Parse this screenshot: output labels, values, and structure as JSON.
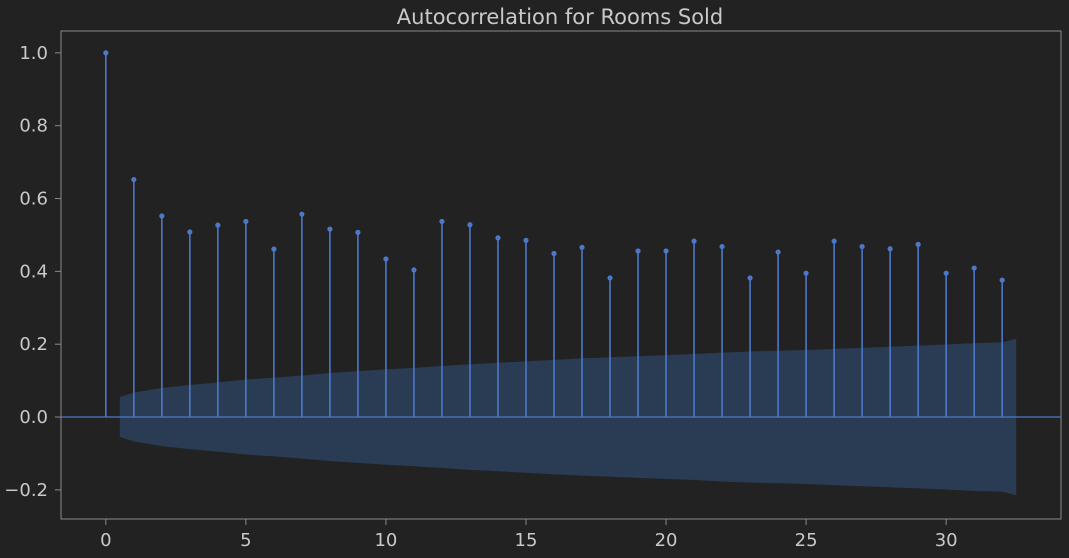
{
  "chart_data": {
    "type": "stem",
    "title": "Autocorrelation for Rooms Sold",
    "xlabel": "",
    "ylabel": "",
    "xlim": [
      -1.6,
      34.1
    ],
    "ylim": [
      -0.28,
      1.06
    ],
    "xticks": [
      0,
      5,
      10,
      15,
      20,
      25,
      30
    ],
    "xtick_labels": [
      "0",
      "5",
      "10",
      "15",
      "20",
      "25",
      "30"
    ],
    "yticks": [
      1.0,
      0.8,
      0.6,
      0.4,
      0.2,
      0.0,
      -0.2
    ],
    "ytick_labels": [
      "1.0",
      "0.8",
      "0.6",
      "0.4",
      "0.2",
      "0.0",
      "−0.2"
    ],
    "grid": false,
    "lags": [
      0,
      1,
      2,
      3,
      4,
      5,
      6,
      7,
      8,
      9,
      10,
      11,
      12,
      13,
      14,
      15,
      16,
      17,
      18,
      19,
      20,
      21,
      22,
      23,
      24,
      25,
      26,
      27,
      28,
      29,
      30,
      31,
      32
    ],
    "values": [
      1.0,
      0.652,
      0.552,
      0.508,
      0.527,
      0.537,
      0.461,
      0.557,
      0.516,
      0.507,
      0.434,
      0.404,
      0.537,
      0.528,
      0.492,
      0.485,
      0.449,
      0.466,
      0.382,
      0.456,
      0.456,
      0.483,
      0.468,
      0.382,
      0.453,
      0.395,
      0.483,
      0.468,
      0.462,
      0.474,
      0.395,
      0.409,
      0.376
    ],
    "confidence_band": {
      "x": [
        0.5,
        1,
        2,
        3,
        4,
        5,
        6,
        7,
        8,
        9,
        10,
        11,
        12,
        13,
        14,
        15,
        16,
        17,
        18,
        19,
        20,
        21,
        22,
        23,
        24,
        25,
        26,
        27,
        28,
        29,
        30,
        31,
        32,
        32.5
      ],
      "upper": [
        0.055,
        0.067,
        0.08,
        0.088,
        0.095,
        0.103,
        0.108,
        0.114,
        0.121,
        0.126,
        0.131,
        0.135,
        0.14,
        0.145,
        0.149,
        0.153,
        0.157,
        0.161,
        0.164,
        0.167,
        0.17,
        0.173,
        0.177,
        0.18,
        0.182,
        0.184,
        0.187,
        0.19,
        0.193,
        0.196,
        0.199,
        0.203,
        0.205,
        0.215
      ]
    },
    "colors": {
      "stem": "#4c78c8",
      "band": "#2e4a73",
      "background": "#222222",
      "text": "#c9c9c9",
      "frame": "#8a8a8a"
    }
  }
}
